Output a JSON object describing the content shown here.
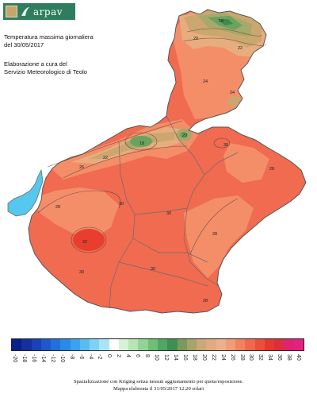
{
  "header": {
    "logo_text": "arpav",
    "title_line1": "Temperatura massima giornaliera",
    "title_line2": "del 30/05/2017",
    "credit_line1": "Elaborazione a cura del",
    "credit_line2": "Servizio Meteorologico di Teolo"
  },
  "colors": {
    "lake": "#56c8f0",
    "border": "#6b6b6b",
    "plain": "#f06b50",
    "hot_core": "#e83e30",
    "mid": "#f48e68",
    "mountain_light": "#e8ad7e",
    "mountain_tan": "#cba76f",
    "mountain_olive": "#a8a86a",
    "mountain_green": "#6ba35e",
    "mountain_dark": "#3f8a4f"
  },
  "isotherm_labels": [
    "18",
    "20",
    "22",
    "24",
    "26",
    "28",
    "30",
    "32"
  ],
  "legend": {
    "colors": [
      "#0a1f8a",
      "#13309e",
      "#1842b6",
      "#1e58cc",
      "#2270dc",
      "#2a8ae6",
      "#3aa2ee",
      "#58bcf2",
      "#7fd2f6",
      "#a9e5f9",
      "#ffffff",
      "#d6f1d6",
      "#b6e5b6",
      "#92d398",
      "#6fbe78",
      "#4fa763",
      "#3f8f52",
      "#7a9a5a",
      "#a6a46a",
      "#c9a978",
      "#dfaa7e",
      "#ecb08a",
      "#f19c78",
      "#f1825f",
      "#ef684d",
      "#ea4f3c",
      "#e6382f",
      "#e02c3c",
      "#e0236e",
      "#e6207f"
    ],
    "ticks": [
      "-20",
      "-18",
      "-16",
      "-14",
      "-12",
      "-10",
      "-8",
      "-6",
      "-4",
      "-2",
      "0",
      "2",
      "4",
      "6",
      "8",
      "10",
      "12",
      "14",
      "16",
      "18",
      "20",
      "22",
      "24",
      "26",
      "28",
      "30",
      "32",
      "34",
      "36",
      "38",
      "40"
    ]
  },
  "footer": {
    "line1": "Spazializzazione con Kriging senza nessun aggiustamento per quota/esposizione.",
    "line2": "Mappa elaborata il 31/05/2017 12:20 solari"
  }
}
